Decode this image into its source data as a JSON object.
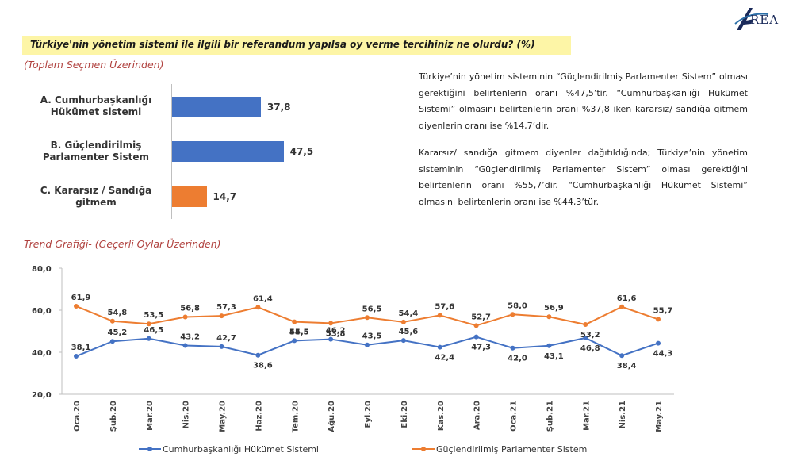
{
  "logo": {
    "text": "REA",
    "colors": [
      "#1a2a5a",
      "#2b6fa8"
    ]
  },
  "question": "Türkiye'nin yönetim sistemi ile ilgili bir referandum yapılsa oy verme tercihiniz ne olurdu? (%)",
  "subtitle": "(Toplam Seçmen Üzerinden)",
  "paragraphs": [
    "Türkiye’nin yönetim sisteminin “Güçlendirilmiş Parlamenter Sistem” olması gerektiğini belirtenlerin oranı %47,5’tir. “Cumhurbaşkanlığı Hükümet Sistemi” olmasını belirtenlerin oranı %37,8 iken kararsız/ sandığa gitmem diyenlerin oranı ise %14,7’dir.",
    "Kararsız/ sandığa gitmem diyenler dağıtıldığında; Türkiye’nin yönetim sisteminin “Güçlendirilmiş Parlamenter Sistem” olması gerektiğini belirtenlerin oranı %55,7’dir. “Cumhurbaşkanlığı Hükümet Sistemi” olmasını belirtenlerin oranı ise %44,3’tür."
  ],
  "trend_title": "Trend Grafiği- (Geçerli Oylar Üzerinden)",
  "chart_data": [
    {
      "type": "bar",
      "orientation": "horizontal",
      "title": "Türkiye'nin yönetim sistemi ile ilgili bir referandum yapılsa oy verme tercihiniz ne olurdu? (%)",
      "subtitle": "(Toplam Seçmen Üzerinden)",
      "categories": [
        [
          "A. Cumhurbaşkanlığı",
          "Hükümet sistemi"
        ],
        [
          "B. Güçlendirilmiş",
          "Parlamenter Sistem"
        ],
        [
          "C. Kararsız / Sandığa",
          "gitmem"
        ]
      ],
      "values": [
        37.8,
        47.5,
        14.7
      ],
      "value_labels": [
        "37,8",
        "47,5",
        "14,7"
      ],
      "colors": [
        "#4472c4",
        "#4472c4",
        "#ed7d31"
      ],
      "xlim": [
        0,
        50
      ]
    },
    {
      "type": "line",
      "title": "Trend Grafiği- (Geçerli Oylar Üzerinden)",
      "x": [
        "Oca.20",
        "Şub.20",
        "Mar.20",
        "Nis.20",
        "May.20",
        "Haz.20",
        "Tem.20",
        "Ağu.20",
        "Eyl.20",
        "Eki.20",
        "Kas.20",
        "Ara.20",
        "Oca.21",
        "Şub.21",
        "Mar.21",
        "Nis.21",
        "May.21"
      ],
      "ylim": [
        20,
        80
      ],
      "yticks": [
        20,
        40,
        60,
        80
      ],
      "ytick_labels": [
        "20,0",
        "40,0",
        "60,0",
        "80,0"
      ],
      "grid": false,
      "legend": "bottom",
      "series": [
        {
          "name": "Cumhurbaşkanlığı Hükümet Sistemi",
          "color": "#4472c4",
          "label_side": [
            "above",
            "above",
            "above",
            "above",
            "above",
            "below",
            "above",
            "above",
            "above",
            "above",
            "below",
            "below",
            "below",
            "below",
            "below",
            "below",
            "below"
          ],
          "values": [
            38.1,
            45.2,
            46.5,
            43.2,
            42.7,
            38.6,
            45.5,
            46.2,
            43.5,
            45.6,
            42.4,
            47.3,
            42.0,
            43.1,
            46.8,
            38.4,
            44.3
          ],
          "labels": [
            "38,1",
            "45,2",
            "46,5",
            "43,2",
            "42,7",
            "38,6",
            "45,5",
            "46,2",
            "43,5",
            "45,6",
            "42,4",
            "47,3",
            "42,0",
            "43,1",
            "46,8",
            "38,4",
            "44,3"
          ]
        },
        {
          "name": "Güçlendirilmiş Parlamenter Sistem",
          "color": "#ed7d31",
          "label_side": [
            "above",
            "above",
            "above",
            "above",
            "above",
            "above",
            "below",
            "below",
            "above",
            "above",
            "above",
            "above",
            "above",
            "above",
            "below",
            "above",
            "above"
          ],
          "values": [
            61.9,
            54.8,
            53.5,
            56.8,
            57.3,
            61.4,
            54.5,
            53.8,
            56.5,
            54.4,
            57.6,
            52.7,
            58.0,
            56.9,
            53.2,
            61.6,
            55.7
          ],
          "labels": [
            "61,9",
            "54,8",
            "53,5",
            "56,8",
            "57,3",
            "61,4",
            "54,5",
            "53,8",
            "56,5",
            "54,4",
            "57,6",
            "52,7",
            "58,0",
            "56,9",
            "53,2",
            "61,6",
            "55,7"
          ]
        }
      ]
    }
  ]
}
